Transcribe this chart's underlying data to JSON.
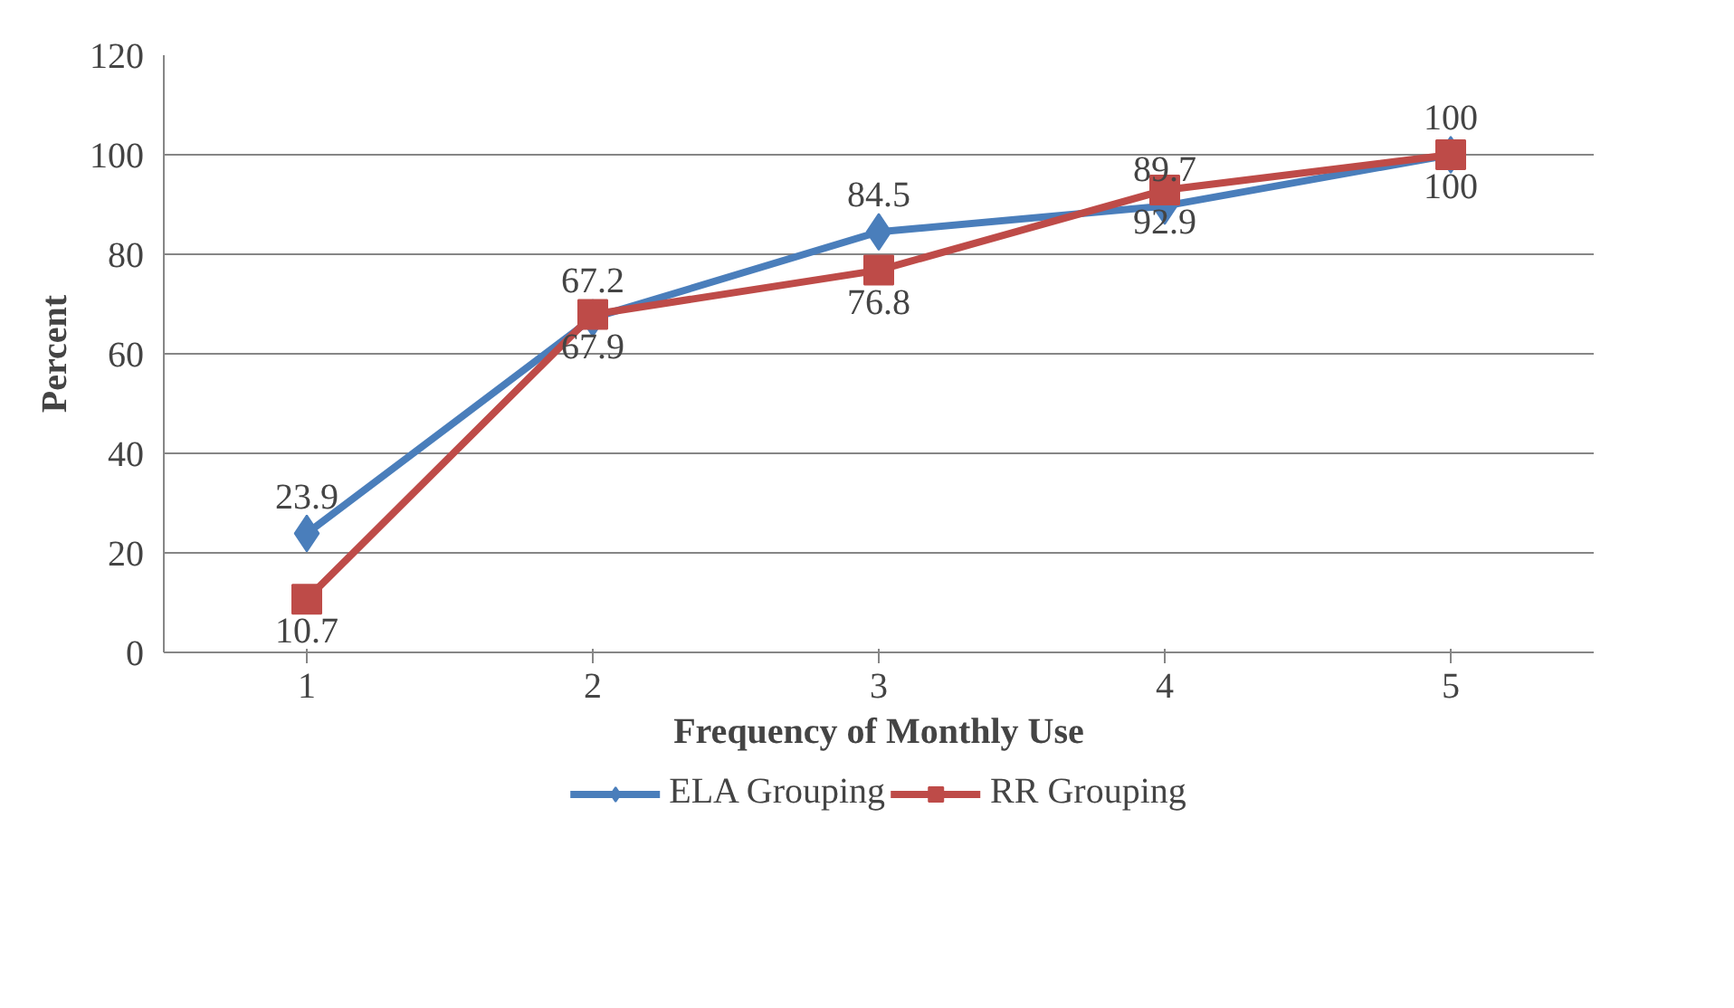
{
  "chart_data": {
    "type": "line",
    "xlabel": "Frequency of Monthly Use",
    "ylabel": "Percent",
    "categories": [
      "1",
      "2",
      "3",
      "4",
      "5"
    ],
    "series": [
      {
        "name": "ELA Grouping",
        "color": "#4a7ebb",
        "marker": "diamond",
        "values": [
          23.9,
          67.2,
          84.5,
          89.7,
          100
        ]
      },
      {
        "name": "RR Grouping",
        "color": "#be4b48",
        "marker": "square",
        "values": [
          10.7,
          67.9,
          76.8,
          92.9,
          100
        ]
      }
    ],
    "ylim": [
      0,
      120
    ],
    "yticks": [
      0,
      20,
      40,
      60,
      80,
      100,
      120
    ],
    "grid": "y",
    "legend": "bottom",
    "data_labels": true,
    "line_style": "solid"
  }
}
